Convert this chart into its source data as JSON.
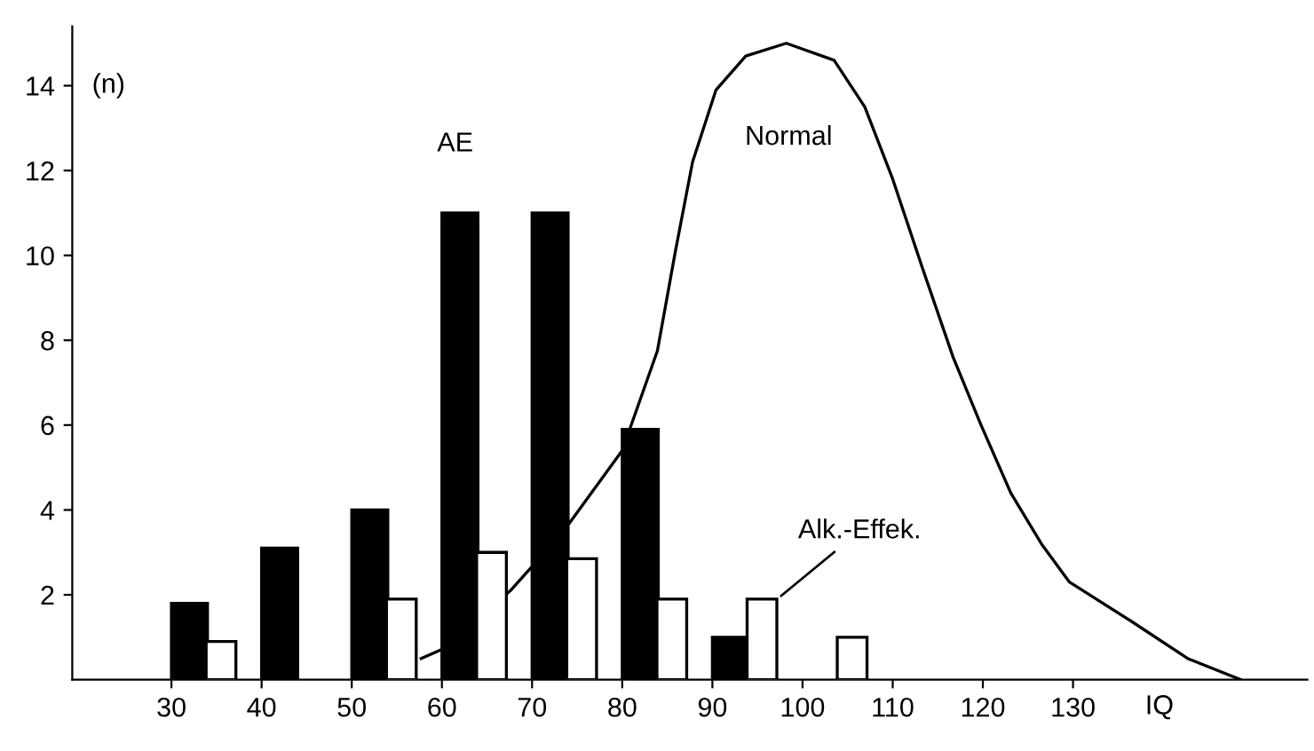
{
  "chart_data": {
    "type": "bar",
    "xlabel": "IQ",
    "ylabel": "(n)",
    "series": [
      {
        "color": "#000000",
        "x": [
          32,
          42,
          52,
          62,
          72,
          82,
          92
        ],
        "values": [
          1.8,
          3.1,
          4,
          11,
          11,
          5.9,
          1
        ]
      },
      {
        "color": "#ffffff",
        "x": [
          35.5,
          55.5,
          65.5,
          75.5,
          85.5,
          95.5,
          105.5
        ],
        "values": [
          0.9,
          1.9,
          3,
          2.85,
          1.9,
          1.9,
          1
        ]
      },
      {
        "type": "line",
        "color": "#000000",
        "x": [
          57.7,
          60.4,
          67.6,
          73.5,
          80,
          83.9,
          85.9,
          87.8,
          90.4,
          93.7,
          98.2,
          103.5,
          106.9,
          110,
          113.3,
          116.7,
          119.8,
          123.1,
          126.5,
          129.6,
          136.3,
          142.7,
          148.6
        ],
        "values": [
          0.5,
          0.75,
          2.1,
          3.5,
          5.4,
          7.75,
          10.1,
          12.2,
          13.9,
          14.7,
          15,
          14.6,
          13.5,
          11.8,
          9.7,
          7.6,
          6,
          4.4,
          3.2,
          2.3,
          1.4,
          0.5,
          0
        ]
      }
    ],
    "annotations": [
      "AE",
      "Normal",
      {
        "text": "Alk.-Effek.",
        "x": 95.5,
        "y": 1.9
      }
    ],
    "xlim": [
      19,
      156
    ],
    "ylim": [
      0,
      15.4
    ],
    "xticks": [
      30,
      40,
      50,
      60,
      70,
      80,
      90,
      100,
      110,
      120,
      130
    ],
    "yticks": [
      2,
      4,
      6,
      8,
      10,
      12,
      14
    ],
    "grid": false,
    "legend": false,
    "marker": "none",
    "line_style": "solid"
  }
}
